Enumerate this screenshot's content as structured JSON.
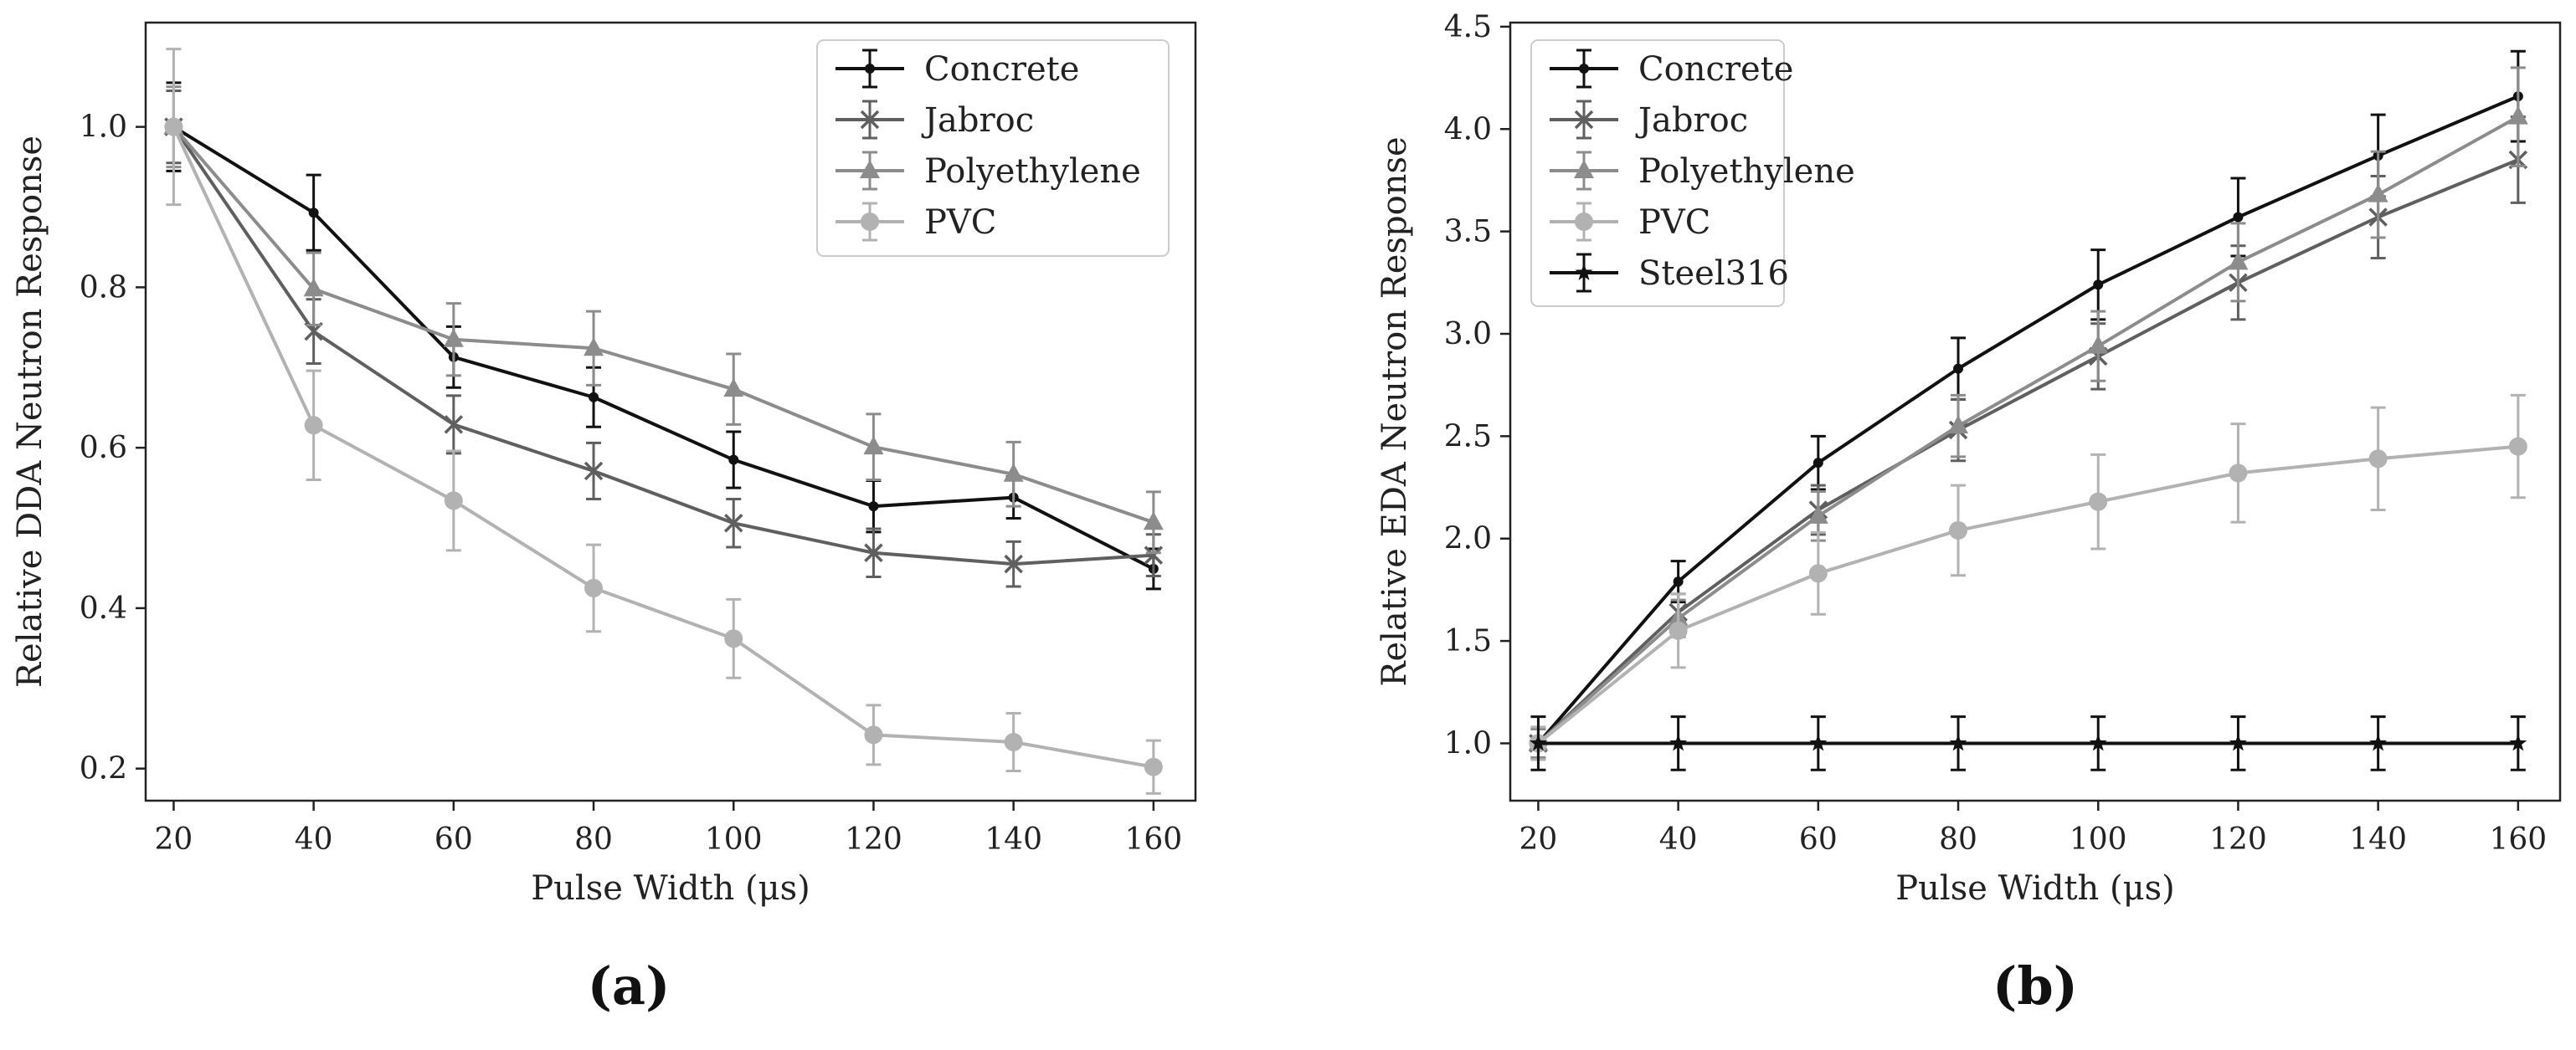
{
  "chart_data": [
    {
      "type": "line",
      "panel_label": "(a)",
      "xlabel": "Pulse Width (μs)",
      "ylabel": "Relative DDA Neutron Response",
      "x": [
        20,
        40,
        60,
        80,
        100,
        120,
        140,
        160
      ],
      "xticks": [
        "20",
        "40",
        "60",
        "80",
        "100",
        "120",
        "140",
        "160"
      ],
      "yticks": [
        "0.2",
        "0.4",
        "0.6",
        "0.8",
        "1.0"
      ],
      "xlim": [
        16,
        166
      ],
      "ylim": [
        0.16,
        1.13
      ],
      "legend_position": "upper right",
      "series": [
        {
          "name": "Concrete",
          "color": "#111111",
          "marker": "dot",
          "values": [
            1.0,
            0.893,
            0.713,
            0.663,
            0.585,
            0.527,
            0.538,
            0.449
          ],
          "errors": [
            0.055,
            0.047,
            0.038,
            0.037,
            0.035,
            0.032,
            0.026,
            0.025
          ]
        },
        {
          "name": "Jabroc",
          "color": "#5f5f5f",
          "marker": "x",
          "values": [
            1.0,
            0.745,
            0.629,
            0.571,
            0.506,
            0.469,
            0.455,
            0.466
          ],
          "errors": [
            0.045,
            0.04,
            0.036,
            0.035,
            0.03,
            0.03,
            0.028,
            0.026
          ]
        },
        {
          "name": "Polyethylene",
          "color": "#8c8c8c",
          "marker": "triangle",
          "values": [
            1.0,
            0.798,
            0.735,
            0.724,
            0.673,
            0.601,
            0.567,
            0.507
          ],
          "errors": [
            0.05,
            0.045,
            0.045,
            0.046,
            0.044,
            0.041,
            0.04,
            0.038
          ]
        },
        {
          "name": "PVC",
          "color": "#b2b2b2",
          "marker": "circle",
          "values": [
            1.0,
            0.628,
            0.534,
            0.425,
            0.362,
            0.242,
            0.233,
            0.202
          ],
          "errors": [
            0.097,
            0.068,
            0.062,
            0.054,
            0.049,
            0.037,
            0.036,
            0.033
          ]
        }
      ]
    },
    {
      "type": "line",
      "panel_label": "(b)",
      "xlabel": "Pulse Width (μs)",
      "ylabel": "Relative EDA Neutron Response",
      "x": [
        20,
        40,
        60,
        80,
        100,
        120,
        140,
        160
      ],
      "xticks": [
        "20",
        "40",
        "60",
        "80",
        "100",
        "120",
        "140",
        "160"
      ],
      "yticks": [
        "1.0",
        "1.5",
        "2.0",
        "2.5",
        "3.0",
        "3.5",
        "4.0",
        "4.5"
      ],
      "xlim": [
        16,
        166
      ],
      "ylim": [
        0.72,
        4.52
      ],
      "legend_position": "upper left",
      "series": [
        {
          "name": "Concrete",
          "color": "#111111",
          "marker": "dot",
          "values": [
            1.0,
            1.79,
            2.37,
            2.83,
            3.24,
            3.57,
            3.87,
            4.16
          ],
          "errors": [
            0.07,
            0.1,
            0.13,
            0.15,
            0.17,
            0.19,
            0.2,
            0.22
          ]
        },
        {
          "name": "Jabroc",
          "color": "#5f5f5f",
          "marker": "x",
          "values": [
            1.0,
            1.64,
            2.14,
            2.53,
            2.89,
            3.25,
            3.57,
            3.85
          ],
          "errors": [
            0.07,
            0.09,
            0.12,
            0.15,
            0.16,
            0.18,
            0.2,
            0.21
          ]
        },
        {
          "name": "Polyethylene",
          "color": "#8c8c8c",
          "marker": "triangle",
          "values": [
            1.0,
            1.61,
            2.11,
            2.55,
            2.94,
            3.35,
            3.68,
            4.06
          ],
          "errors": [
            0.07,
            0.09,
            0.12,
            0.15,
            0.17,
            0.19,
            0.21,
            0.24
          ]
        },
        {
          "name": "PVC",
          "color": "#b2b2b2",
          "marker": "circle",
          "values": [
            1.0,
            1.55,
            1.83,
            2.04,
            2.18,
            2.32,
            2.39,
            2.45
          ],
          "errors": [
            0.08,
            0.18,
            0.2,
            0.22,
            0.23,
            0.24,
            0.25,
            0.25
          ]
        },
        {
          "name": "Steel316",
          "color": "#111111",
          "marker": "star",
          "values": [
            1.0,
            1.0,
            1.0,
            1.0,
            1.0,
            1.0,
            1.0,
            1.0
          ],
          "errors": [
            0.13,
            0.13,
            0.13,
            0.13,
            0.13,
            0.13,
            0.13,
            0.13
          ]
        }
      ]
    }
  ]
}
